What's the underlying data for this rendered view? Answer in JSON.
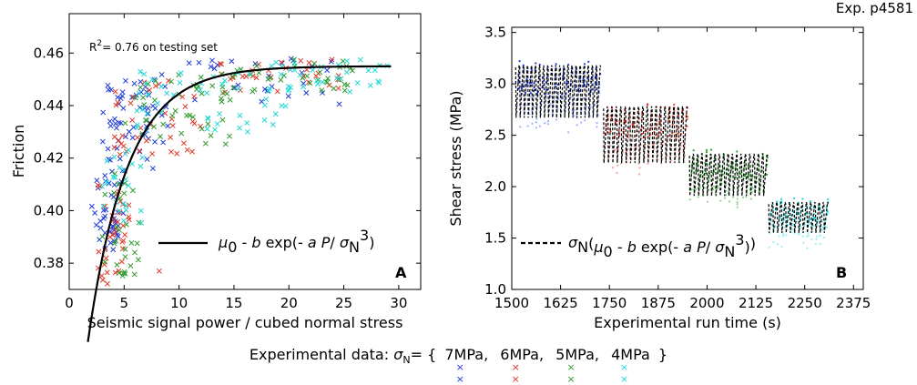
{
  "chart_data": [
    {
      "panel": "A",
      "type": "scatter",
      "xlabel": "Seismic signal power / cubed normal stress",
      "ylabel": "Friction",
      "xlim": [
        0,
        32
      ],
      "ylim": [
        0.37,
        0.475
      ],
      "xticks": [
        "0",
        "5",
        "10",
        "15",
        "20",
        "25",
        "30"
      ],
      "yticks": [
        "0.38",
        "0.40",
        "0.42",
        "0.44",
        "0.46"
      ],
      "annotation": "R²= 0.76 on testing set",
      "r2_label": "R",
      "r2_sup": "2",
      "r2_rest": "= 0.76 on testing set",
      "panel_label": "A",
      "fit_legend": "μ0 - b exp(- a P/ σN³)",
      "fit": {
        "mu0": 0.455,
        "b": 0.26,
        "a": 1.02,
        "xrange": [
          1.7,
          29.3
        ]
      },
      "series": [
        {
          "color": "#1f3bd6",
          "label": "7MPa",
          "clusters": [
            {
              "x": [
                2.0,
                5.0
              ],
              "y": [
                0.385,
                0.415
              ],
              "n": 40
            },
            {
              "x": [
                3.0,
                9.0
              ],
              "y": [
                0.415,
                0.45
              ],
              "n": 60
            },
            {
              "x": [
                8.0,
                25.0
              ],
              "y": [
                0.44,
                0.458
              ],
              "n": 30
            }
          ]
        },
        {
          "color": "#e03a2a",
          "label": "6MPa",
          "clusters": [
            {
              "x": [
                2.5,
                5.5
              ],
              "y": [
                0.372,
                0.41
              ],
              "n": 35
            },
            {
              "x": [
                4.0,
                12.0
              ],
              "y": [
                0.42,
                0.45
              ],
              "n": 40
            },
            {
              "x": [
                12.0,
                25.0
              ],
              "y": [
                0.445,
                0.458
              ],
              "n": 30
            }
          ]
        },
        {
          "color": "#2f9a2f",
          "label": "5MPa",
          "clusters": [
            {
              "x": [
                3.0,
                6.5
              ],
              "y": [
                0.375,
                0.415
              ],
              "n": 30
            },
            {
              "x": [
                5.0,
                15.0
              ],
              "y": [
                0.425,
                0.452
              ],
              "n": 45
            },
            {
              "x": [
                14.0,
                26.0
              ],
              "y": [
                0.445,
                0.458
              ],
              "n": 35
            }
          ]
        },
        {
          "color": "#21d6d6",
          "label": "4MPa",
          "clusters": [
            {
              "x": [
                3.0,
                7.0
              ],
              "y": [
                0.395,
                0.425
              ],
              "n": 25
            },
            {
              "x": [
                6.0,
                20.0
              ],
              "y": [
                0.43,
                0.455
              ],
              "n": 45
            },
            {
              "x": [
                18.0,
                29.0
              ],
              "y": [
                0.445,
                0.458
              ],
              "n": 35
            }
          ]
        }
      ],
      "outliers": [
        {
          "x": 8.2,
          "y": 0.377,
          "color": "#e03a2a"
        }
      ]
    },
    {
      "panel": "B",
      "type": "line",
      "xlabel": "Experimental run time (s)",
      "ylabel": "Shear stress (MPa)",
      "xlim": [
        1500,
        2400
      ],
      "ylim": [
        1.0,
        3.55
      ],
      "xticks": [
        "1500",
        "1625",
        "1750",
        "1875",
        "2000",
        "2125",
        "2250",
        "2375"
      ],
      "yticks": [
        "1.0",
        "1.5",
        "2.0",
        "2.5",
        "3.0",
        "3.5"
      ],
      "title_right": "Exp. p4581",
      "panel_label": "B",
      "fit_legend": "σN(μ0 - b exp(- a P/ σN³))",
      "segments": [
        {
          "t": [
            1510,
            1728
          ],
          "low": 2.62,
          "high": 3.18,
          "cycles": 21,
          "color": "#1f3bd6",
          "light": "#9fb0ff",
          "label": "7MPa"
        },
        {
          "t": [
            1735,
            1950
          ],
          "low": 2.18,
          "high": 2.78,
          "cycles": 19,
          "color": "#e03a2a",
          "light": "#f4a49b",
          "label": "6MPa"
        },
        {
          "t": [
            1955,
            2155
          ],
          "low": 1.86,
          "high": 2.32,
          "cycles": 18,
          "color": "#2f9a2f",
          "light": "#8ed68e",
          "label": "5MPa"
        },
        {
          "t": [
            2158,
            2310
          ],
          "low": 1.5,
          "high": 1.85,
          "cycles": 14,
          "color": "#21d6d6",
          "light": "#99f0f0",
          "label": "4MPa"
        }
      ]
    }
  ],
  "legend": {
    "prefix": "Experimental data:",
    "sigma": "σ",
    "sub": "N",
    "open": "= {",
    "items": [
      "7MPa,",
      "6MPa,",
      "5MPa,",
      "4MPa"
    ],
    "close": "}",
    "colors": [
      "#1f3bd6",
      "#e03a2a",
      "#2f9a2f",
      "#21d6d6"
    ]
  }
}
